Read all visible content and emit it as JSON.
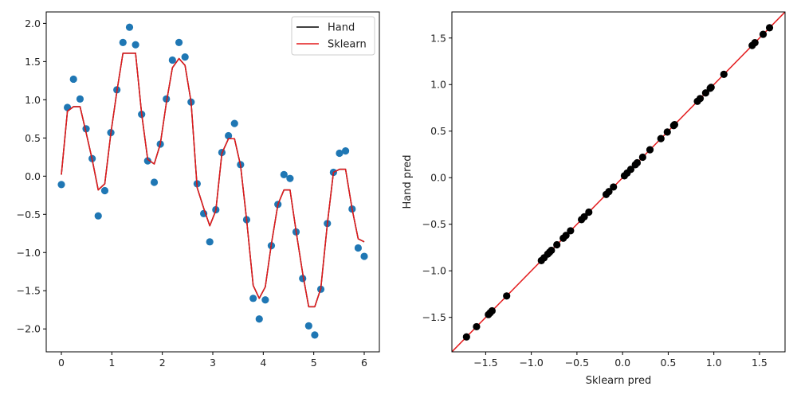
{
  "chart_data": [
    {
      "type": "scatter+line",
      "title": "",
      "xlabel": "",
      "ylabel": "",
      "xlim": [
        -0.3,
        6.3
      ],
      "ylim": [
        -2.3,
        2.15
      ],
      "xticks": [
        0,
        1,
        2,
        3,
        4,
        5,
        6
      ],
      "yticks": [
        -2.0,
        -1.5,
        -1.0,
        -0.5,
        0.0,
        0.5,
        1.0,
        1.5,
        2.0
      ],
      "grid": false,
      "legend_position": "top-right",
      "scatter": {
        "color": "#1f77b4",
        "x": [
          0.0,
          0.12,
          0.24,
          0.37,
          0.49,
          0.61,
          0.73,
          0.86,
          0.98,
          1.1,
          1.22,
          1.35,
          1.47,
          1.59,
          1.71,
          1.84,
          1.96,
          2.08,
          2.2,
          2.33,
          2.45,
          2.57,
          2.69,
          2.82,
          2.94,
          3.06,
          3.18,
          3.31,
          3.43,
          3.55,
          3.67,
          3.8,
          3.92,
          4.04,
          4.16,
          4.29,
          4.41,
          4.53,
          4.65,
          4.78,
          4.9,
          5.02,
          5.14,
          5.27,
          5.39,
          5.51,
          5.63,
          5.76,
          5.88,
          6.0
        ],
        "y": [
          -0.11,
          0.9,
          1.27,
          1.01,
          0.62,
          0.23,
          -0.52,
          -0.19,
          0.57,
          1.13,
          1.75,
          1.95,
          1.72,
          0.81,
          0.2,
          -0.08,
          0.42,
          1.01,
          1.52,
          1.75,
          1.56,
          0.97,
          -0.1,
          -0.49,
          -0.86,
          -0.44,
          0.31,
          0.53,
          0.69,
          0.15,
          -0.57,
          -1.6,
          -1.87,
          -1.62,
          -0.91,
          -0.37,
          0.02,
          -0.03,
          -0.73,
          -1.34,
          -1.96,
          -2.08,
          -1.48,
          -0.62,
          0.05,
          0.3,
          0.33,
          -0.43,
          -0.94,
          -1.05
        ]
      },
      "series": [
        {
          "name": "Hand",
          "color": "#000000",
          "x": [
            0.0,
            0.12,
            0.24,
            0.37,
            0.49,
            0.61,
            0.73,
            0.86,
            0.98,
            1.1,
            1.22,
            1.35,
            1.47,
            1.59,
            1.71,
            1.84,
            1.96,
            2.08,
            2.2,
            2.33,
            2.45,
            2.57,
            2.69,
            2.82,
            2.94,
            3.06,
            3.18,
            3.31,
            3.43,
            3.55,
            3.67,
            3.8,
            3.92,
            4.04,
            4.16,
            4.29,
            4.41,
            4.53,
            4.65,
            4.78,
            4.9,
            5.02,
            5.14,
            5.27,
            5.39,
            5.51,
            5.63,
            5.76,
            5.88,
            6.0
          ],
          "y": [
            0.02,
            0.85,
            0.91,
            0.91,
            0.57,
            0.22,
            -0.18,
            -0.1,
            0.56,
            1.11,
            1.61,
            1.61,
            1.61,
            0.82,
            0.22,
            0.16,
            0.42,
            0.96,
            1.42,
            1.54,
            1.45,
            0.97,
            -0.15,
            -0.42,
            -0.65,
            -0.45,
            0.3,
            0.49,
            0.49,
            0.14,
            -0.57,
            -1.43,
            -1.6,
            -1.45,
            -0.89,
            -0.37,
            -0.18,
            -0.18,
            -0.72,
            -1.27,
            -1.71,
            -1.71,
            -1.47,
            -0.62,
            0.05,
            0.09,
            0.09,
            -0.43,
            -0.82,
            -0.86
          ]
        },
        {
          "name": "Sklearn",
          "color": "#e31a1c",
          "x": [
            0.0,
            0.12,
            0.24,
            0.37,
            0.49,
            0.61,
            0.73,
            0.86,
            0.98,
            1.1,
            1.22,
            1.35,
            1.47,
            1.59,
            1.71,
            1.84,
            1.96,
            2.08,
            2.2,
            2.33,
            2.45,
            2.57,
            2.69,
            2.82,
            2.94,
            3.06,
            3.18,
            3.31,
            3.43,
            3.55,
            3.67,
            3.8,
            3.92,
            4.04,
            4.16,
            4.29,
            4.41,
            4.53,
            4.65,
            4.78,
            4.9,
            5.02,
            5.14,
            5.27,
            5.39,
            5.51,
            5.63,
            5.76,
            5.88,
            6.0
          ],
          "y": [
            0.02,
            0.85,
            0.91,
            0.91,
            0.57,
            0.22,
            -0.18,
            -0.1,
            0.56,
            1.11,
            1.61,
            1.61,
            1.61,
            0.82,
            0.22,
            0.16,
            0.42,
            0.96,
            1.42,
            1.54,
            1.45,
            0.97,
            -0.15,
            -0.42,
            -0.65,
            -0.45,
            0.3,
            0.49,
            0.49,
            0.14,
            -0.57,
            -1.43,
            -1.6,
            -1.45,
            -0.89,
            -0.37,
            -0.18,
            -0.18,
            -0.72,
            -1.27,
            -1.71,
            -1.71,
            -1.47,
            -0.62,
            0.05,
            0.09,
            0.09,
            -0.43,
            -0.82,
            -0.86
          ]
        }
      ]
    },
    {
      "type": "scatter",
      "title": "",
      "xlabel": "Sklearn pred",
      "ylabel": "Hand pred",
      "xlim": [
        -1.87,
        1.78
      ],
      "ylim": [
        -1.87,
        1.78
      ],
      "xticks": [
        -1.5,
        -1.0,
        -0.5,
        0.0,
        0.5,
        1.0,
        1.5
      ],
      "yticks": [
        -1.5,
        -1.0,
        -0.5,
        0.0,
        0.5,
        1.0,
        1.5
      ],
      "grid": false,
      "scatter": {
        "color": "#000000",
        "x": [
          -1.71,
          -1.6,
          -1.47,
          -1.45,
          -1.43,
          -1.27,
          -0.86,
          -0.82,
          -0.8,
          -0.78,
          -0.65,
          -0.62,
          -0.57,
          -0.45,
          -0.42,
          -0.37,
          -0.18,
          -0.15,
          -0.1,
          0.02,
          0.05,
          0.09,
          0.14,
          0.16,
          0.22,
          0.3,
          0.42,
          0.49,
          0.57,
          0.82,
          0.91,
          0.97,
          1.11,
          1.42,
          1.54,
          1.61,
          0.56,
          0.96,
          1.45,
          -0.89,
          0.85,
          -0.72
        ],
        "y": [
          -1.71,
          -1.6,
          -1.47,
          -1.45,
          -1.43,
          -1.27,
          -0.86,
          -0.82,
          -0.8,
          -0.78,
          -0.65,
          -0.62,
          -0.57,
          -0.45,
          -0.42,
          -0.37,
          -0.18,
          -0.15,
          -0.1,
          0.02,
          0.05,
          0.09,
          0.14,
          0.16,
          0.22,
          0.3,
          0.42,
          0.49,
          0.57,
          0.82,
          0.91,
          0.97,
          1.11,
          1.42,
          1.54,
          1.61,
          0.56,
          0.96,
          1.45,
          -0.89,
          0.85,
          -0.72
        ]
      },
      "reference_line": {
        "color": "#e31a1c",
        "from": [
          -1.87,
          -1.87
        ],
        "to": [
          1.78,
          1.78
        ]
      }
    }
  ]
}
